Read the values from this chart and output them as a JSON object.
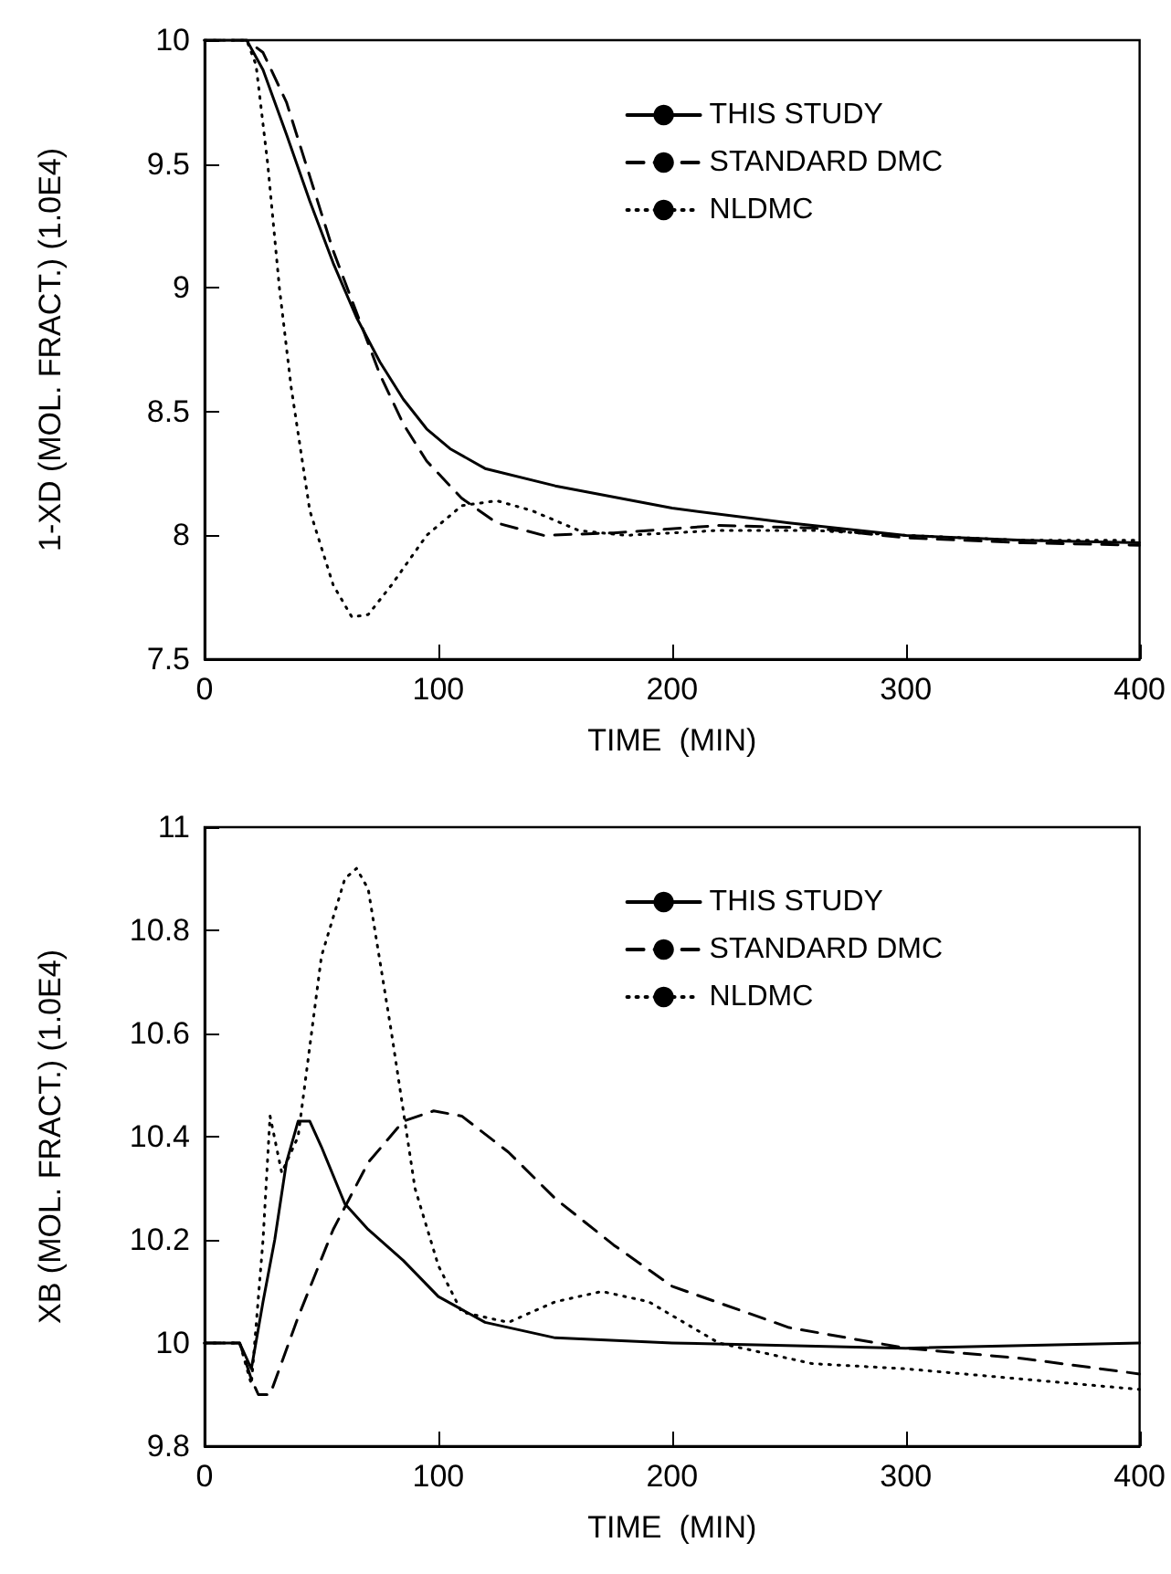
{
  "chart_data": [
    {
      "type": "line",
      "xlabel": "TIME  (MIN)",
      "ylabel": "1-XD (MOL. FRACT.) (1.0E4)",
      "xlim": [
        0,
        400
      ],
      "xticks": [
        0,
        100,
        200,
        300,
        400
      ],
      "ylim": [
        7.5,
        10
      ],
      "yticks": [
        7.5,
        8,
        8.5,
        9,
        9.5,
        10
      ],
      "legend": "top right",
      "grid": false,
      "marker": "none",
      "series": [
        {
          "name": "THIS STUDY",
          "color": "#000000",
          "line_style": "solid",
          "x": [
            0,
            18,
            25,
            35,
            45,
            55,
            65,
            75,
            85,
            95,
            105,
            120,
            150,
            200,
            250,
            300,
            350,
            400
          ],
          "values": [
            10,
            10,
            9.88,
            9.62,
            9.35,
            9.1,
            8.88,
            8.7,
            8.55,
            8.43,
            8.35,
            8.27,
            8.2,
            8.11,
            8.05,
            8.0,
            7.98,
            7.97
          ]
        },
        {
          "name": "STANDARD DMC",
          "color": "#000000",
          "line_style": "dashed",
          "x": [
            0,
            18,
            25,
            35,
            45,
            55,
            65,
            75,
            85,
            95,
            110,
            125,
            145,
            175,
            220,
            260,
            300,
            350,
            400
          ],
          "values": [
            10,
            10,
            9.95,
            9.75,
            9.45,
            9.15,
            8.9,
            8.65,
            8.45,
            8.3,
            8.15,
            8.05,
            8.0,
            8.01,
            8.04,
            8.03,
            7.99,
            7.97,
            7.96
          ]
        },
        {
          "name": "NLDMC",
          "color": "#000000",
          "line_style": "dotted",
          "x": [
            0,
            18,
            22,
            27,
            32,
            37,
            45,
            55,
            63,
            70,
            80,
            95,
            110,
            125,
            140,
            160,
            180,
            220,
            260,
            300,
            350,
            400
          ],
          "values": [
            10,
            10,
            9.9,
            9.5,
            9.0,
            8.6,
            8.1,
            7.8,
            7.67,
            7.68,
            7.8,
            8.0,
            8.12,
            8.14,
            8.1,
            8.02,
            8.0,
            8.02,
            8.02,
            8.0,
            7.98,
            7.98
          ]
        }
      ]
    },
    {
      "type": "line",
      "xlabel": "TIME  (MIN)",
      "ylabel": "XB (MOL. FRACT.) (1.0E4)",
      "xlim": [
        0,
        400
      ],
      "xticks": [
        0,
        100,
        200,
        300,
        400
      ],
      "ylim": [
        9.8,
        11
      ],
      "yticks": [
        9.8,
        10,
        10.2,
        10.4,
        10.6,
        10.8,
        11
      ],
      "legend": "top right",
      "grid": false,
      "marker": "none",
      "series": [
        {
          "name": "THIS STUDY",
          "color": "#000000",
          "line_style": "solid",
          "x": [
            0,
            15,
            20,
            25,
            30,
            35,
            40,
            45,
            50,
            60,
            70,
            85,
            100,
            120,
            150,
            200,
            300,
            400
          ],
          "values": [
            10,
            10,
            9.95,
            10.08,
            10.2,
            10.35,
            10.43,
            10.43,
            10.38,
            10.27,
            10.22,
            10.16,
            10.09,
            10.04,
            10.01,
            10.0,
            9.99,
            10.0
          ]
        },
        {
          "name": "STANDARD DMC",
          "color": "#000000",
          "line_style": "dashed",
          "x": [
            0,
            15,
            20,
            23,
            28,
            40,
            55,
            70,
            85,
            98,
            110,
            130,
            150,
            175,
            200,
            250,
            300,
            350,
            400
          ],
          "values": [
            10,
            10,
            9.93,
            9.9,
            9.9,
            10.05,
            10.22,
            10.35,
            10.43,
            10.45,
            10.44,
            10.37,
            10.28,
            10.19,
            10.11,
            10.03,
            9.99,
            9.97,
            9.94
          ]
        },
        {
          "name": "NLDMC",
          "color": "#000000",
          "line_style": "dotted",
          "x": [
            0,
            15,
            20,
            25,
            28,
            33,
            40,
            50,
            60,
            65,
            70,
            80,
            90,
            100,
            110,
            130,
            150,
            170,
            190,
            220,
            260,
            300,
            350,
            400
          ],
          "values": [
            10,
            10,
            9.92,
            10.2,
            10.44,
            10.33,
            10.4,
            10.75,
            10.9,
            10.92,
            10.88,
            10.6,
            10.3,
            10.15,
            10.06,
            10.04,
            10.08,
            10.1,
            10.08,
            10.0,
            9.96,
            9.95,
            9.93,
            9.91
          ]
        }
      ]
    }
  ]
}
